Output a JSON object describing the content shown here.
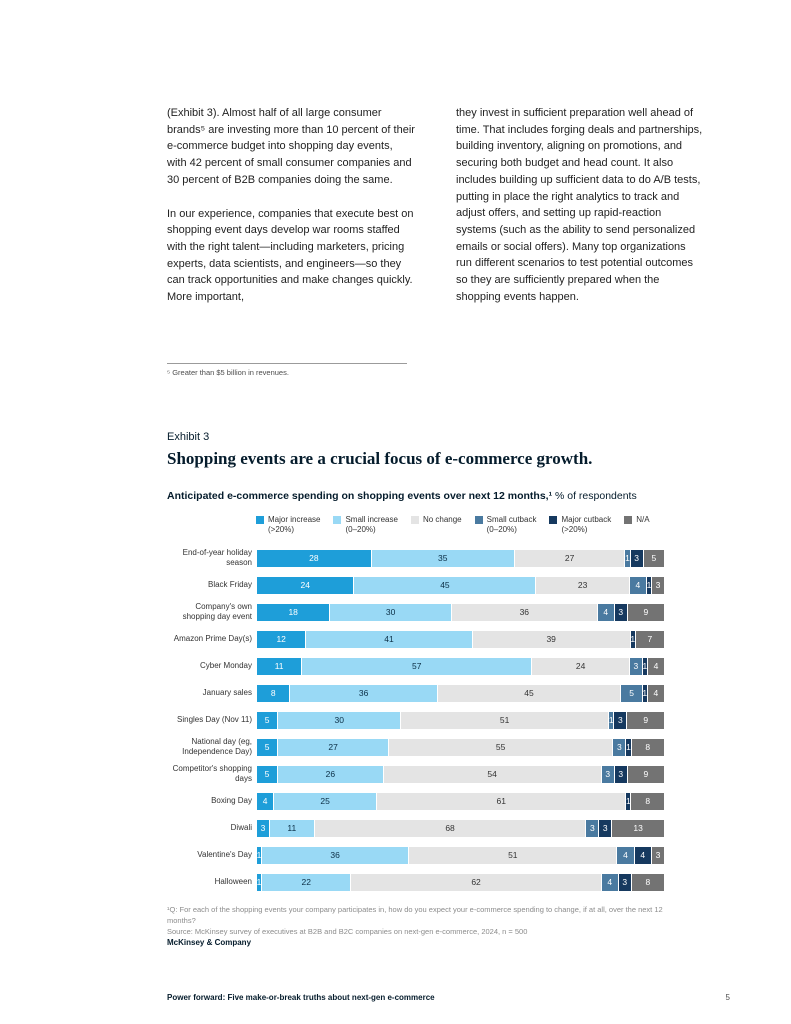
{
  "body": {
    "left": [
      "(Exhibit 3). Almost half of all large consumer brands⁵ are investing more than 10 percent of their e-commerce budget into shopping day events, with 42 percent of small consumer companies and 30 percent of B2B companies doing the same.",
      "In our experience, companies that execute best on shopping event days develop war rooms staffed with the right talent—including marketers, pricing experts, data scientists, and engineers—so they can track opportunities and make changes quickly. More important,"
    ],
    "right": [
      "they invest in sufficient preparation well ahead of time. That includes forging deals and partnerships, building inventory, aligning on promotions, and securing both budget and head count. It also includes building up sufficient data to do A/B tests, putting in place the right analytics to track and adjust offers, and setting up rapid-reaction systems (such as the ability to send personalized emails or social offers). Many top organizations run different scenarios to test potential outcomes so they are sufficiently prepared when the shopping events happen."
    ],
    "footnote": "⁵ Greater than $5 billion in revenues."
  },
  "exhibit": {
    "label": "Exhibit 3",
    "title": "Shopping events are a crucial focus of e-commerce growth.",
    "chart_title_bold": "Anticipated e-commerce spending on shopping events over next 12 months,¹",
    "chart_title_regular": " % of respondents"
  },
  "chart_data": {
    "type": "bar",
    "orientation": "horizontal",
    "stacked": true,
    "unit_label": "% of respondents",
    "legend_position": "top",
    "x_range": [
      0,
      100
    ],
    "categories": [
      "End-of-year holiday season",
      "Black Friday",
      "Company's own shopping day event",
      "Amazon Prime Day(s)",
      "Cyber Monday",
      "January sales",
      "Singles Day (Nov 11)",
      "National day (eg, Independence Day)",
      "Competitor's shopping days",
      "Boxing Day",
      "Diwali",
      "Valentine's Day",
      "Halloween"
    ],
    "series": [
      {
        "name": "Major increase",
        "qualifier": "(>20%)",
        "color": "#1e9ed9",
        "text_color": "#ffffff",
        "values": [
          28,
          24,
          18,
          12,
          11,
          8,
          5,
          5,
          5,
          4,
          3,
          1,
          1
        ]
      },
      {
        "name": "Small increase",
        "qualifier": "(0–20%)",
        "color": "#99d9f5",
        "text_color": "#0b2e45",
        "values": [
          35,
          45,
          30,
          41,
          57,
          36,
          30,
          27,
          26,
          25,
          11,
          36,
          22
        ]
      },
      {
        "name": "No change",
        "qualifier": "",
        "color": "#e4e4e4",
        "text_color": "#333333",
        "values": [
          27,
          23,
          36,
          39,
          24,
          45,
          51,
          55,
          54,
          61,
          68,
          51,
          62
        ]
      },
      {
        "name": "Small cutback",
        "qualifier": "(0–20%)",
        "color": "#4a7aa0",
        "text_color": "#ffffff",
        "values": [
          1,
          4,
          4,
          0,
          3,
          5,
          1,
          3,
          3,
          0,
          3,
          4,
          4
        ]
      },
      {
        "name": "Major cutback",
        "qualifier": "(>20%)",
        "color": "#16395f",
        "text_color": "#ffffff",
        "values": [
          3,
          1,
          3,
          1,
          1,
          1,
          3,
          1,
          3,
          1,
          3,
          4,
          3
        ]
      },
      {
        "name": "N/A",
        "qualifier": "",
        "color": "#737373",
        "text_color": "#ffffff",
        "values": [
          5,
          3,
          9,
          7,
          4,
          4,
          9,
          8,
          9,
          8,
          13,
          3,
          8
        ]
      }
    ],
    "footnotes": [
      "¹Q: For each of the shopping events your company participates in, how do you expect your e-commerce spending to change, if at all, over the next 12 months?",
      "Source: McKinsey survey of executives at B2B and B2C companies on next-gen e-commerce, 2024, n = 500"
    ]
  },
  "branding": {
    "publisher": "McKinsey & Company"
  },
  "footer": {
    "title": "Power forward: Five make-or-break truths about next-gen e-commerce",
    "page_number": "5"
  }
}
